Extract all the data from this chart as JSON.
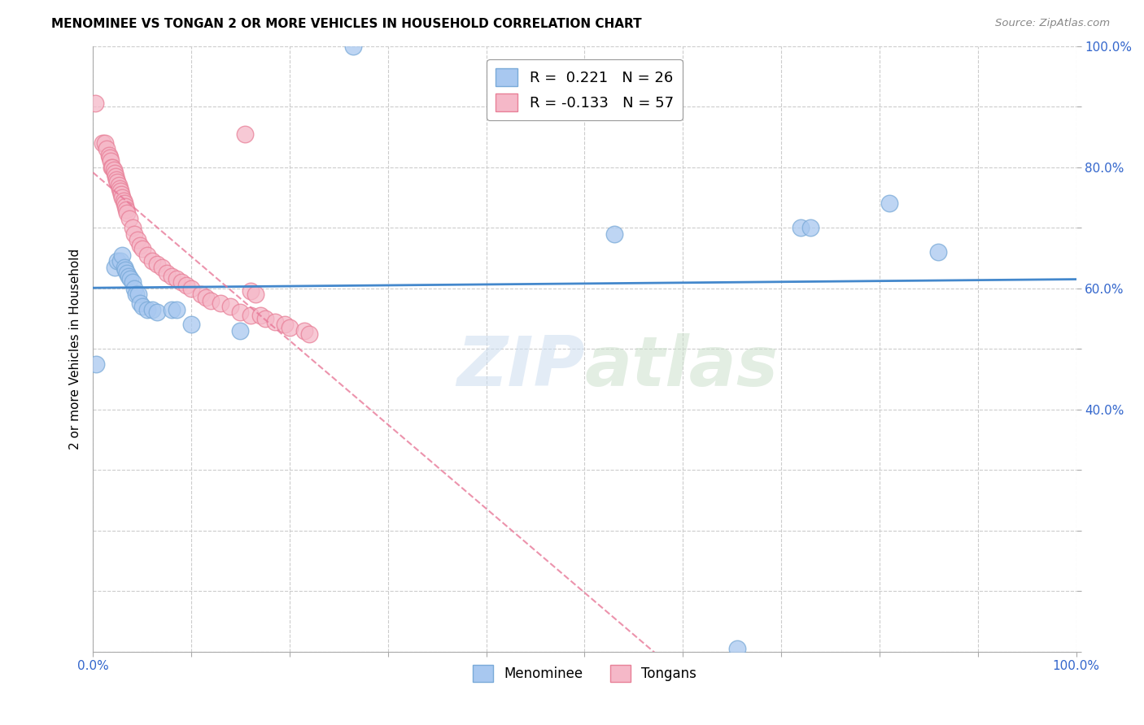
{
  "title": "MENOMINEE VS TONGAN 2 OR MORE VEHICLES IN HOUSEHOLD CORRELATION CHART",
  "source": "Source: ZipAtlas.com",
  "ylabel": "2 or more Vehicles in Household",
  "watermark": "ZIPatlas",
  "xlim": [
    0.0,
    1.0
  ],
  "ylim": [
    0.0,
    1.0
  ],
  "menominee_color": "#a8c8f0",
  "tongan_color": "#f5b8c8",
  "menominee_edge": "#7aaad8",
  "tongan_edge": "#e88098",
  "grid_color": "#cccccc",
  "menominee_line_color": "#4488cc",
  "tongan_line_color": "#e87898",
  "menominee_points": [
    [
      0.003,
      0.475
    ],
    [
      0.022,
      0.635
    ],
    [
      0.025,
      0.645
    ],
    [
      0.028,
      0.645
    ],
    [
      0.03,
      0.655
    ],
    [
      0.032,
      0.635
    ],
    [
      0.033,
      0.63
    ],
    [
      0.035,
      0.625
    ],
    [
      0.036,
      0.62
    ],
    [
      0.038,
      0.615
    ],
    [
      0.04,
      0.61
    ],
    [
      0.042,
      0.6
    ],
    [
      0.044,
      0.59
    ],
    [
      0.046,
      0.59
    ],
    [
      0.048,
      0.575
    ],
    [
      0.05,
      0.57
    ],
    [
      0.055,
      0.565
    ],
    [
      0.06,
      0.565
    ],
    [
      0.065,
      0.56
    ],
    [
      0.08,
      0.565
    ],
    [
      0.085,
      0.565
    ],
    [
      0.1,
      0.54
    ],
    [
      0.15,
      0.53
    ],
    [
      0.265,
      1.0
    ],
    [
      0.53,
      0.69
    ],
    [
      0.72,
      0.7
    ],
    [
      0.73,
      0.7
    ],
    [
      0.81,
      0.74
    ],
    [
      0.86,
      0.66
    ],
    [
      0.655,
      0.005
    ]
  ],
  "tongan_points": [
    [
      0.002,
      0.905
    ],
    [
      0.01,
      0.84
    ],
    [
      0.012,
      0.84
    ],
    [
      0.014,
      0.83
    ],
    [
      0.016,
      0.82
    ],
    [
      0.017,
      0.815
    ],
    [
      0.018,
      0.81
    ],
    [
      0.019,
      0.8
    ],
    [
      0.02,
      0.8
    ],
    [
      0.021,
      0.795
    ],
    [
      0.022,
      0.79
    ],
    [
      0.023,
      0.785
    ],
    [
      0.024,
      0.78
    ],
    [
      0.025,
      0.775
    ],
    [
      0.026,
      0.77
    ],
    [
      0.027,
      0.765
    ],
    [
      0.028,
      0.76
    ],
    [
      0.029,
      0.755
    ],
    [
      0.03,
      0.75
    ],
    [
      0.031,
      0.745
    ],
    [
      0.032,
      0.74
    ],
    [
      0.033,
      0.735
    ],
    [
      0.034,
      0.73
    ],
    [
      0.035,
      0.725
    ],
    [
      0.037,
      0.715
    ],
    [
      0.04,
      0.7
    ],
    [
      0.042,
      0.69
    ],
    [
      0.045,
      0.68
    ],
    [
      0.048,
      0.67
    ],
    [
      0.05,
      0.665
    ],
    [
      0.055,
      0.655
    ],
    [
      0.06,
      0.645
    ],
    [
      0.065,
      0.64
    ],
    [
      0.07,
      0.635
    ],
    [
      0.075,
      0.625
    ],
    [
      0.08,
      0.62
    ],
    [
      0.085,
      0.615
    ],
    [
      0.09,
      0.61
    ],
    [
      0.095,
      0.605
    ],
    [
      0.1,
      0.6
    ],
    [
      0.11,
      0.59
    ],
    [
      0.115,
      0.585
    ],
    [
      0.12,
      0.58
    ],
    [
      0.13,
      0.575
    ],
    [
      0.14,
      0.57
    ],
    [
      0.15,
      0.56
    ],
    [
      0.16,
      0.555
    ],
    [
      0.17,
      0.555
    ],
    [
      0.175,
      0.55
    ],
    [
      0.185,
      0.545
    ],
    [
      0.195,
      0.54
    ],
    [
      0.2,
      0.535
    ],
    [
      0.155,
      0.855
    ],
    [
      0.16,
      0.595
    ],
    [
      0.165,
      0.59
    ],
    [
      0.215,
      0.53
    ],
    [
      0.22,
      0.525
    ]
  ]
}
